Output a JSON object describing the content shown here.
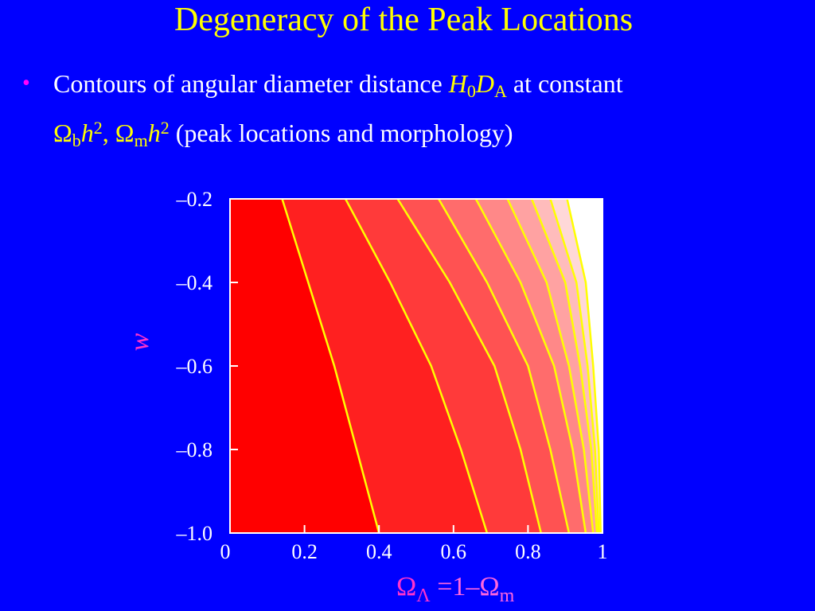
{
  "title": "Degeneracy of the Peak Locations",
  "bullet": {
    "line1": [
      "Contours of angular diameter distance ",
      "H",
      "0",
      "D",
      "A",
      " at constant"
    ],
    "line2": [
      "Ω",
      "b",
      "h",
      "2",
      ", Ω",
      "m",
      "h",
      "2",
      " (peak locations and morphology)"
    ]
  },
  "chart_data": {
    "type": "contour",
    "xlabel_parts": [
      "Ω",
      "Λ",
      " =1–Ω",
      "m"
    ],
    "ylabel": "w",
    "xlim": [
      0,
      1
    ],
    "ylim": [
      -1,
      -0.2
    ],
    "xticks": [
      0,
      0.2,
      0.4,
      0.6,
      0.8,
      1
    ],
    "yticks": [
      {
        "value": -1,
        "label": "–1.0"
      },
      {
        "value": -0.8,
        "label": "–0.8"
      },
      {
        "value": -0.6,
        "label": "–0.6"
      },
      {
        "value": -0.4,
        "label": "–0.4"
      },
      {
        "value": -0.2,
        "label": "–0.2"
      }
    ],
    "line_color": "#ffff00",
    "fill_colors": [
      "#ff0000",
      "#ff2020",
      "#ff3a3a",
      "#ff5252",
      "#ff6c6c",
      "#ff8888",
      "#ffa2a2",
      "#ffbcbc",
      "#ffd8d8",
      "#ffffff"
    ],
    "y": [
      -0.2,
      -0.4,
      -0.6,
      -0.8,
      -1
    ],
    "series": [
      {
        "x": [
          0.14,
          0.21,
          0.28,
          0.34,
          0.4
        ]
      },
      {
        "x": [
          0.31,
          0.43,
          0.54,
          0.62,
          0.69
        ]
      },
      {
        "x": [
          0.45,
          0.59,
          0.71,
          0.78,
          0.835
        ]
      },
      {
        "x": [
          0.56,
          0.69,
          0.8,
          0.86,
          0.91
        ]
      },
      {
        "x": [
          0.66,
          0.78,
          0.87,
          0.92,
          0.955
        ]
      },
      {
        "x": [
          0.745,
          0.85,
          0.91,
          0.95,
          0.975
        ]
      },
      {
        "x": [
          0.81,
          0.9,
          0.94,
          0.97,
          0.985
        ]
      },
      {
        "x": [
          0.86,
          0.93,
          0.96,
          0.98,
          0.99
        ]
      },
      {
        "x": [
          0.905,
          0.955,
          0.975,
          0.99,
          0.995
        ]
      }
    ]
  }
}
